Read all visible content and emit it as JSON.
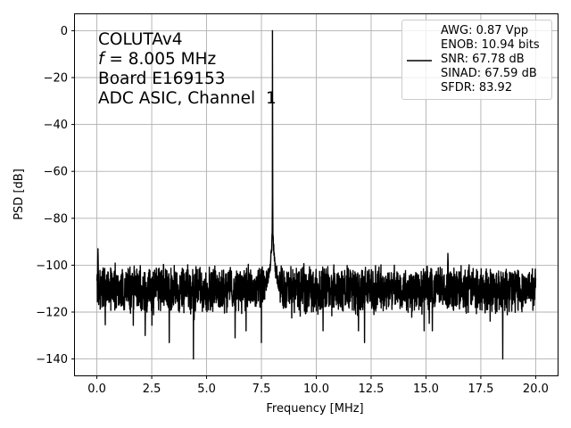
{
  "chart_data": {
    "type": "line",
    "title": "",
    "xlabel": "Frequency [MHz]",
    "ylabel": "PSD [dB]",
    "xlim": [
      -1.0,
      21.0
    ],
    "ylim": [
      -147,
      7
    ],
    "x_ticks": [
      0.0,
      2.5,
      5.0,
      7.5,
      10.0,
      12.5,
      15.0,
      17.5,
      20.0
    ],
    "x_tick_labels": [
      "0.0",
      "2.5",
      "5.0",
      "7.5",
      "10.0",
      "12.5",
      "15.0",
      "17.5",
      "20.0"
    ],
    "y_ticks": [
      0,
      -20,
      -40,
      -60,
      -80,
      -100,
      -120,
      -140
    ],
    "y_tick_labels": [
      "0",
      "−20",
      "−40",
      "−60",
      "−80",
      "−100",
      "−120",
      "−140"
    ],
    "grid": true,
    "line_color": "#000000",
    "annotation": {
      "chip": "COLUTAv4",
      "freq_symbol": "f",
      "freq_value": " = 8.005 MHz",
      "board": "Board E169153",
      "channel": "ADC ASIC, Channel  1"
    },
    "legend": {
      "position": "top-right",
      "entries": [
        "AWG: 0.87 Vpp",
        "ENOB: 10.94 bits",
        "SNR: 67.78 dB",
        "SINAD: 67.59 dB",
        "SFDR: 83.92"
      ]
    },
    "series": [
      {
        "x_range": [
          0.0,
          20.0
        ],
        "noise_floor_db": -110,
        "floor_range_db": [
          -122,
          -96
        ],
        "deep_dips": [
          {
            "x": 4.4,
            "y": -140
          },
          {
            "x": 18.5,
            "y": -140
          },
          {
            "x": 3.3,
            "y": -133
          },
          {
            "x": 7.5,
            "y": -133
          },
          {
            "x": 12.2,
            "y": -133
          },
          {
            "x": 6.3,
            "y": -131
          },
          {
            "x": 2.2,
            "y": -130
          }
        ],
        "peaks": [
          {
            "x": 8.005,
            "y": 0
          },
          {
            "x": 16.0,
            "y": -95
          },
          {
            "x": 0.05,
            "y": -93
          }
        ],
        "skirt": {
          "center": 8.005,
          "top_db": -84
        }
      }
    ]
  }
}
